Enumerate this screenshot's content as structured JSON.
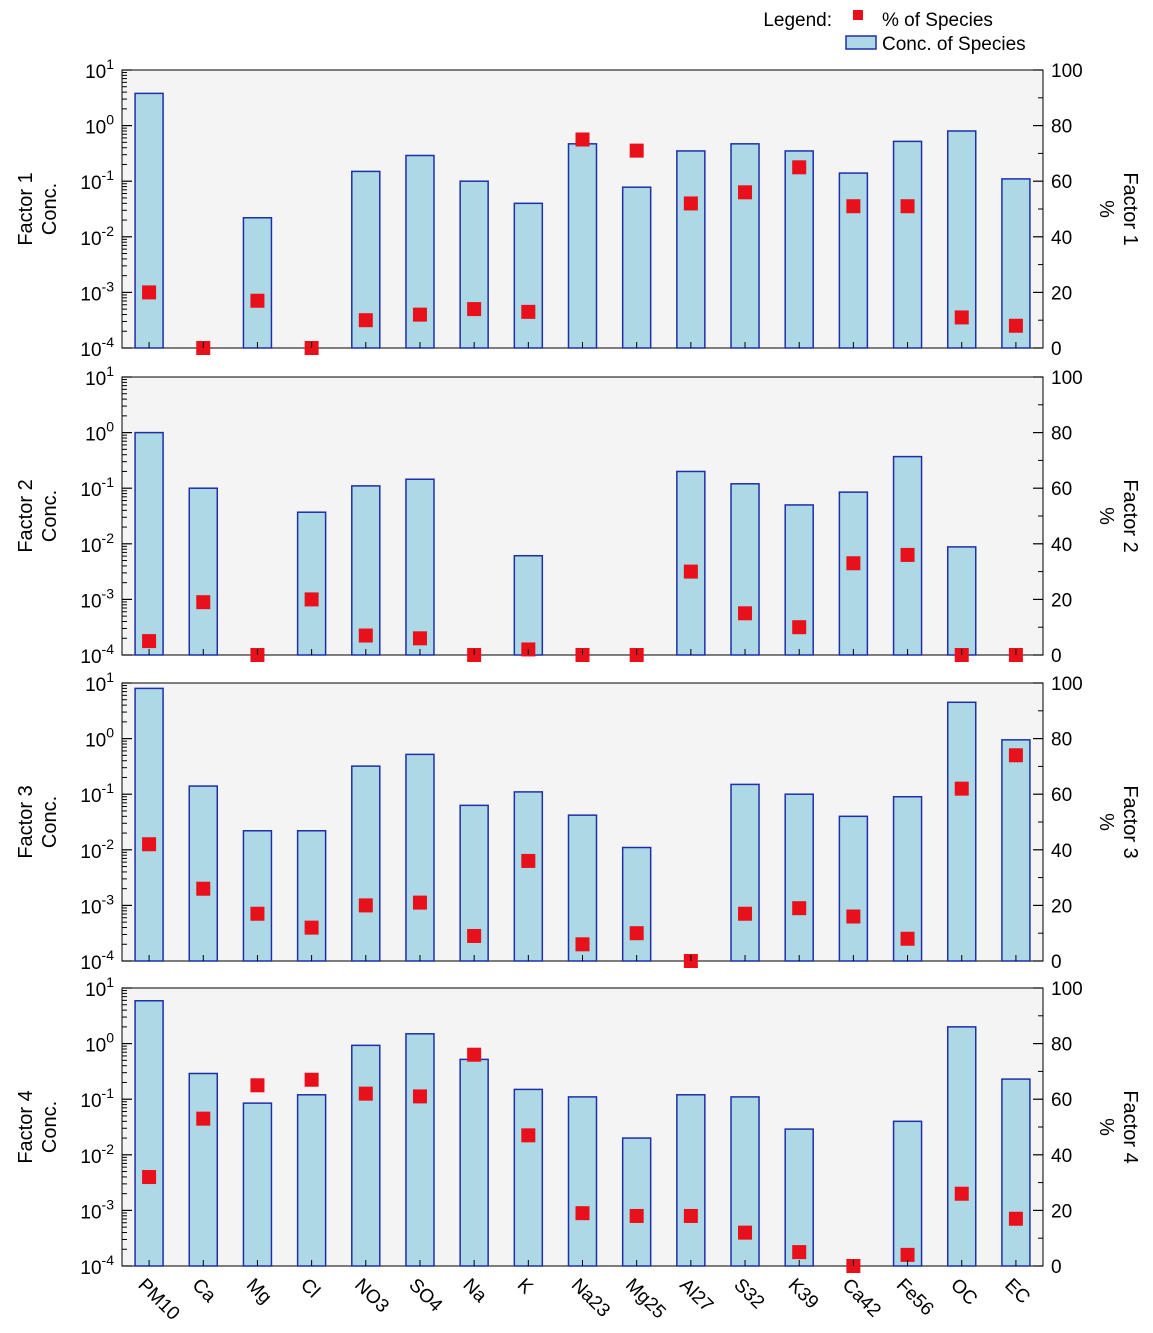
{
  "legend": {
    "title": "Legend:",
    "percent_label": "% of Species",
    "conc_label": "Conc. of Species"
  },
  "colors": {
    "bar_fill": "#ADD8E6",
    "bar_stroke": "#1F2FA8",
    "marker": "#E8101A",
    "panel_bg": "#F4F4F4"
  },
  "chart_data": {
    "type": "bar",
    "categories": [
      "PM10",
      "Ca",
      "Mg",
      "Cl",
      "NO3",
      "SO4",
      "Na",
      "K",
      "Na23",
      "Mg25",
      "Al27",
      "S32",
      "K39",
      "Ca42",
      "Fe56",
      "OC",
      "EC"
    ],
    "left_axis": {
      "scale": "log",
      "range": [
        0.0001,
        10
      ],
      "tick_labels": [
        "10-4",
        "10-3",
        "10-2",
        "10-1",
        "100",
        "101"
      ]
    },
    "right_axis": {
      "scale": "linear",
      "range": [
        0,
        100
      ],
      "ticks": [
        0,
        20,
        40,
        60,
        80,
        100
      ]
    },
    "panels": [
      {
        "left_label_1": "Factor 1",
        "left_label_2": "Conc.",
        "right_label_1": "%",
        "right_label_2": "Factor 1",
        "conc": [
          3.8,
          0.0001,
          0.022,
          0.0001,
          0.15,
          0.29,
          0.1,
          0.04,
          0.47,
          0.078,
          0.35,
          0.47,
          0.35,
          0.14,
          0.52,
          0.8,
          0.11
        ],
        "percent": [
          20,
          0,
          17,
          0,
          10,
          12,
          14,
          13,
          75,
          71,
          52,
          56,
          65,
          51,
          51,
          11,
          8
        ]
      },
      {
        "left_label_1": "Factor 2",
        "left_label_2": "Conc.",
        "right_label_1": "%",
        "right_label_2": "Factor 2",
        "conc": [
          1.0,
          0.1,
          0.0001,
          0.037,
          0.11,
          0.145,
          0.0001,
          0.0061,
          0.0001,
          0.0001,
          0.2,
          0.12,
          0.05,
          0.085,
          0.37,
          0.0088,
          0.0001
        ],
        "percent": [
          5,
          19,
          0,
          20,
          7,
          6,
          0,
          2,
          0,
          0,
          30,
          15,
          10,
          33,
          36,
          0,
          0
        ]
      },
      {
        "left_label_1": "Factor 3",
        "left_label_2": "Conc.",
        "right_label_1": "%",
        "right_label_2": "Factor 3",
        "conc": [
          8.0,
          0.14,
          0.022,
          0.022,
          0.32,
          0.52,
          0.063,
          0.11,
          0.042,
          0.011,
          0.0001,
          0.15,
          0.1,
          0.04,
          0.09,
          4.5,
          0.95
        ],
        "percent": [
          42,
          26,
          17,
          12,
          20,
          21,
          9,
          36,
          6,
          10,
          0,
          17,
          19,
          16,
          8,
          62,
          74
        ]
      },
      {
        "left_label_1": "Factor 4",
        "left_label_2": "Conc.",
        "right_label_1": "%",
        "right_label_2": "Factor 4",
        "conc": [
          5.9,
          0.29,
          0.085,
          0.12,
          0.93,
          1.5,
          0.52,
          0.15,
          0.11,
          0.02,
          0.12,
          0.11,
          0.029,
          0.0001,
          0.04,
          2.0,
          0.23
        ],
        "percent": [
          32,
          53,
          65,
          67,
          62,
          61,
          76,
          47,
          19,
          18,
          18,
          12,
          5,
          0,
          4,
          26,
          17
        ]
      }
    ]
  }
}
